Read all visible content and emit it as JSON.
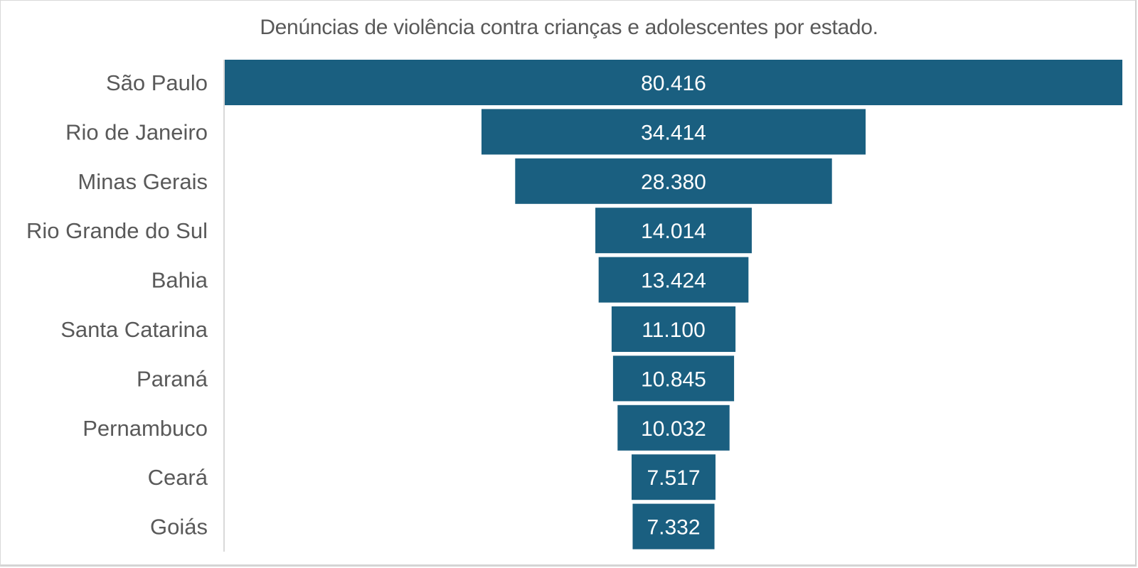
{
  "chart_data": {
    "type": "bar",
    "subtype": "funnel",
    "title": "Denúncias de violência contra crianças e adolescentes por estado.",
    "xlabel": "",
    "ylabel": "",
    "categories": [
      "São Paulo",
      "Rio de Janeiro",
      "Minas Gerais",
      "Rio Grande do Sul",
      "Bahia",
      "Santa Catarina",
      "Paraná",
      "Pernambuco",
      "Ceará",
      "Goiás"
    ],
    "values": [
      80416,
      34414,
      28380,
      14014,
      13424,
      11100,
      10845,
      10032,
      7517,
      7332
    ],
    "value_labels": [
      "80.416",
      "34.414",
      "28.380",
      "14.014",
      "13.424",
      "11.100",
      "10.845",
      "10.032",
      "7.517",
      "7.332"
    ],
    "xlim": [
      0,
      80416
    ],
    "grid": false,
    "legend": "none",
    "bar_color": "#1a5f80"
  }
}
